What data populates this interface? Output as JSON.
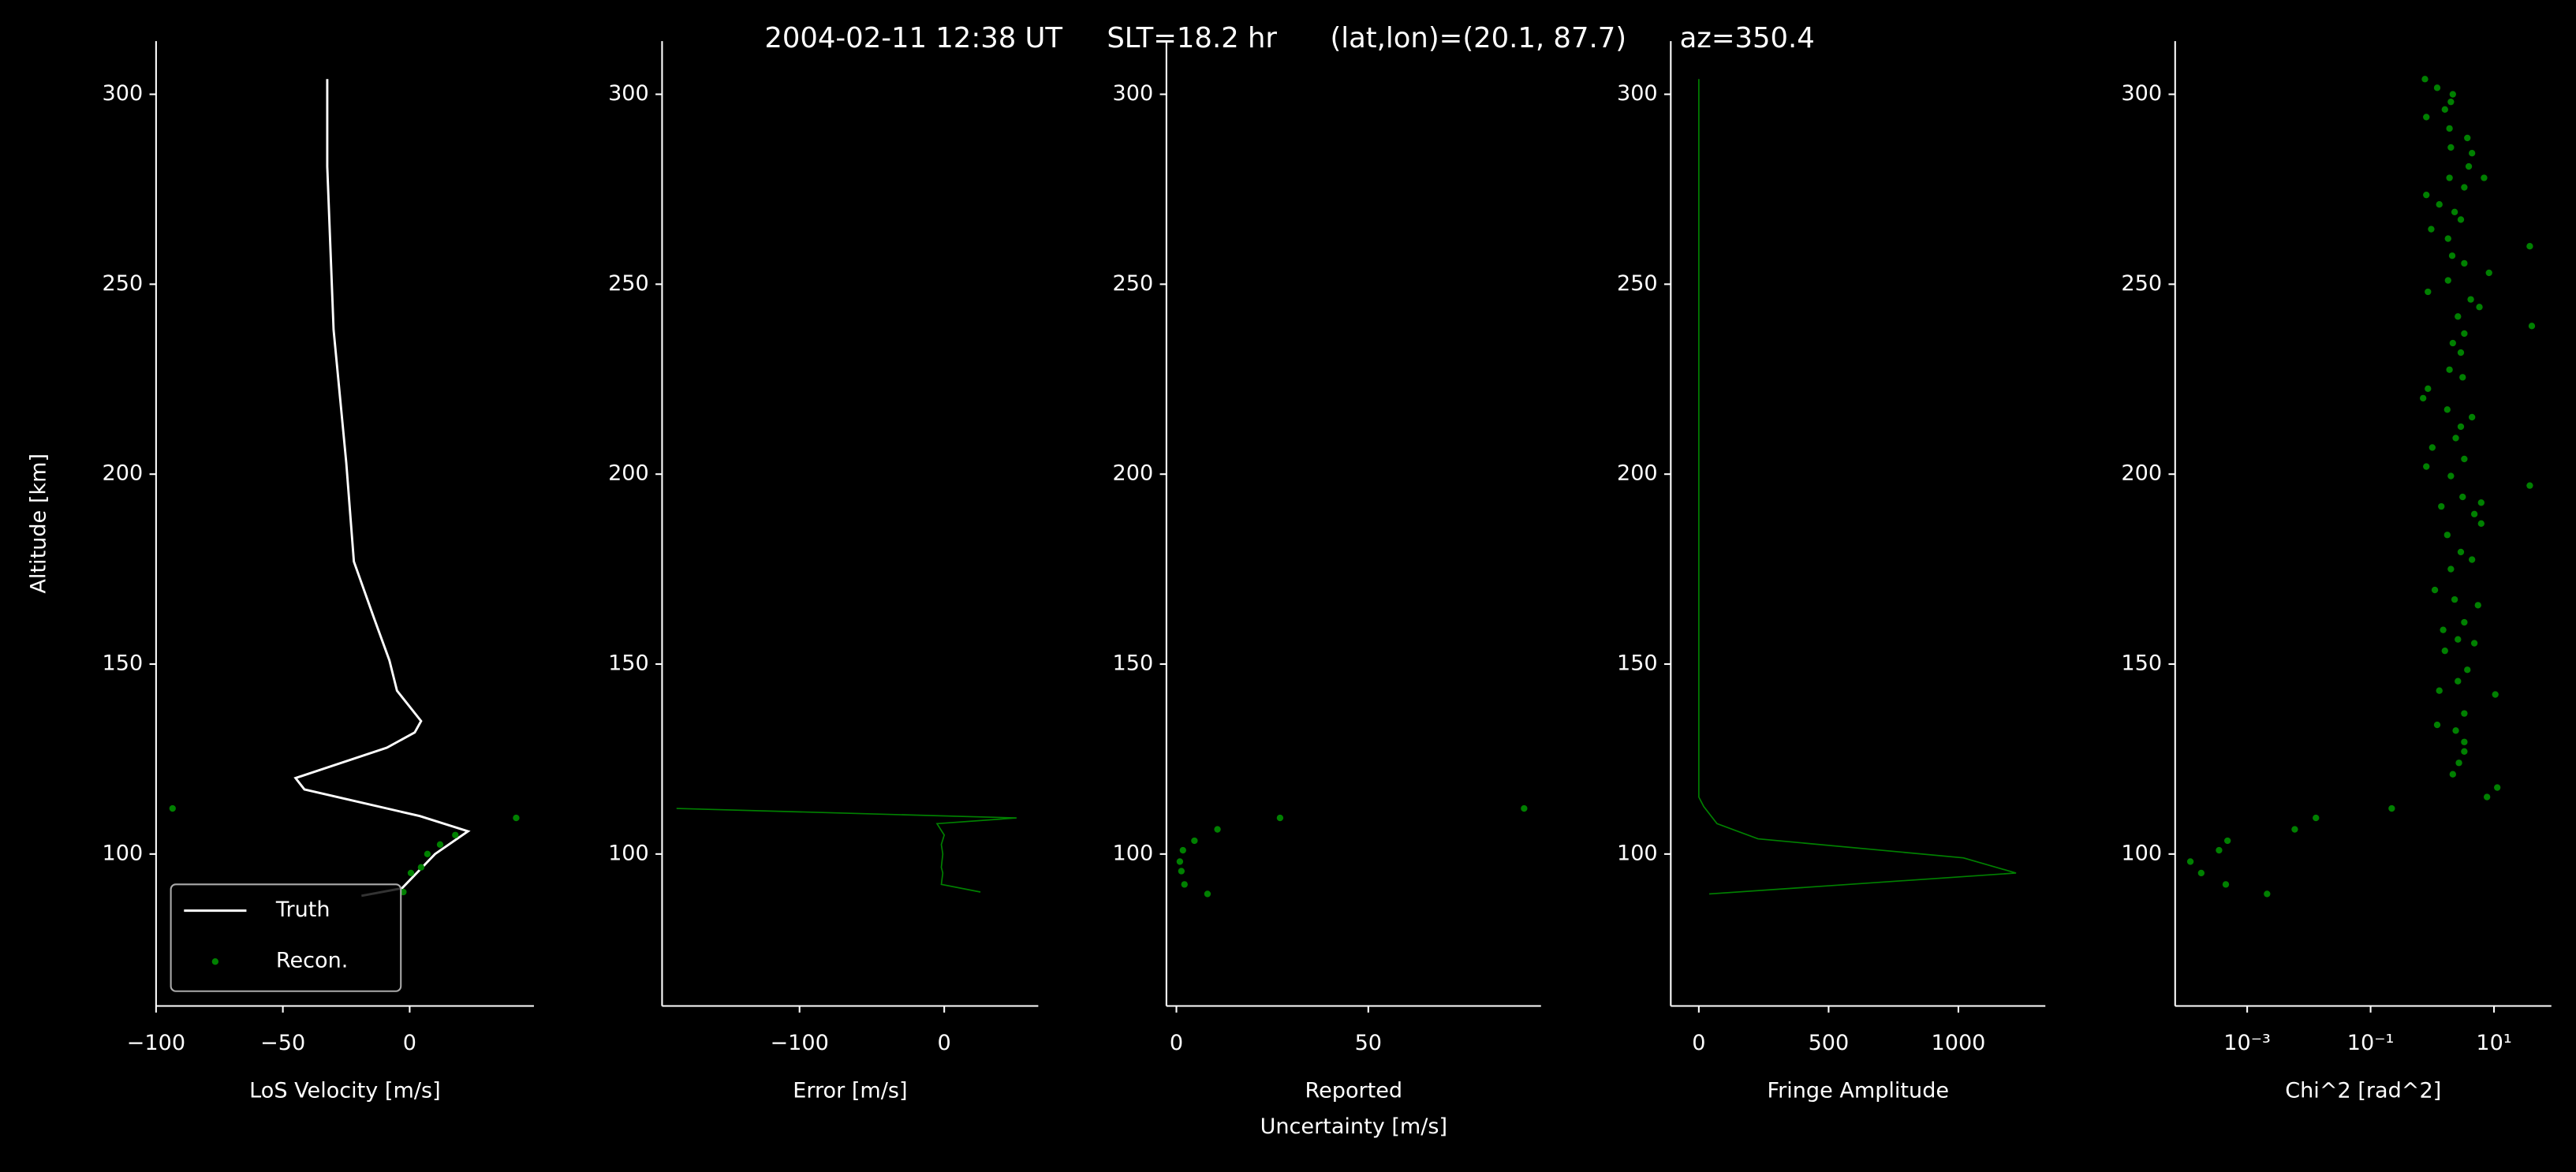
{
  "title": "2004-02-11 12:38 UT     SLT=18.2 hr      (lat,lon)=(20.1, 87.7)      az=350.4",
  "chart_data": [
    {
      "type": "line",
      "xlabel": "LoS Velocity [m/s]",
      "ylabel": "Altitude [km]",
      "xlim": [
        -100,
        49
      ],
      "xticks": [
        {
          "value": -100,
          "label": "−100"
        },
        {
          "value": -50,
          "label": "−50"
        },
        0
      ],
      "ylim": [
        60,
        314
      ],
      "yticks": [
        100,
        150,
        200,
        250,
        300
      ],
      "legend": "lower left",
      "series": [
        {
          "name": "Truth",
          "style": "line",
          "color": "#ffffff",
          "x": [
            -32.5,
            -32.5,
            -30,
            -25,
            -22,
            -14,
            -8,
            -5,
            4.5,
            2,
            -9,
            -45,
            -41.5,
            4,
            23,
            10,
            -3,
            -19
          ],
          "y": [
            304,
            281,
            238,
            203,
            177,
            162,
            151,
            143,
            135,
            132,
            128,
            120,
            117,
            110,
            106,
            100,
            91,
            89
          ]
        },
        {
          "name": "Recon.",
          "style": "dots",
          "color": "#008000",
          "x": [
            -93.5,
            42,
            18,
            12,
            7,
            4.5,
            0.5,
            -2.5
          ],
          "y": [
            112,
            109.5,
            105,
            102.5,
            100,
            96.5,
            95,
            90
          ]
        }
      ]
    },
    {
      "type": "line",
      "xlabel": "Error [m/s]",
      "xlim": [
        -195,
        65
      ],
      "xticks": [
        {
          "value": -100,
          "label": "−100"
        },
        0
      ],
      "ylim": [
        60,
        314
      ],
      "yticks": [
        100,
        150,
        200,
        250,
        300
      ],
      "series": [
        {
          "style": "line",
          "color": "#008000",
          "x": [
            -185,
            50,
            -5,
            0,
            -2,
            -1,
            -2,
            -1,
            -2,
            25
          ],
          "y": [
            112,
            109.5,
            108,
            105,
            102.5,
            100,
            96.5,
            95,
            92,
            90
          ]
        }
      ]
    },
    {
      "type": "scatter",
      "xlabel": [
        "Reported",
        "Uncertainty [m/s]"
      ],
      "xlim": [
        -2.6,
        95
      ],
      "xticks": [
        0,
        50
      ],
      "ylim": [
        60,
        314
      ],
      "yticks": [
        100,
        150,
        200,
        250,
        300
      ],
      "series": [
        {
          "style": "dots",
          "color": "#008000",
          "x": [
            90.6,
            27,
            10.7,
            4.7,
            1.7,
            0.9,
            1.3,
            2.1,
            8.1
          ],
          "y": [
            112,
            109.5,
            106.5,
            103.5,
            101,
            98,
            95.5,
            92,
            89.5
          ]
        }
      ]
    },
    {
      "type": "line",
      "xlabel": "Fringe Amplitude",
      "xlim": [
        -108,
        1335
      ],
      "xticks": [
        0,
        500,
        1000
      ],
      "ylim": [
        60,
        314
      ],
      "yticks": [
        100,
        150,
        200,
        250,
        300
      ],
      "series": [
        {
          "style": "line",
          "color": "#008000",
          "x": [
            0,
            0,
            19,
            70,
            228,
            1019,
            1222,
            40
          ],
          "y": [
            304,
            115,
            112.5,
            108,
            104,
            99,
            95,
            89.5
          ]
        }
      ]
    },
    {
      "type": "scatter",
      "xlabel": "Chi^2 [rad^2]",
      "xscale": "log",
      "xlim": [
        6.8e-05,
        85
      ],
      "xticks": [
        {
          "value": 0.001,
          "label": "10⁻³"
        },
        {
          "value": 0.1,
          "label": "10⁻¹"
        },
        {
          "value": 10,
          "label": "10¹"
        }
      ],
      "ylim": [
        60,
        314
      ],
      "yticks": [
        100,
        150,
        200,
        250,
        300
      ],
      "series": [
        {
          "style": "dots",
          "color": "#008000",
          "x": [
            0.76,
            1.2,
            2.15,
            2.0,
            1.6,
            0.8,
            1.9,
            3.7,
            2.0,
            4.4,
            3.9,
            1.9,
            6.9,
            3.3,
            0.8,
            1.3,
            2.3,
            2.9,
            0.96,
            1.8,
            38,
            2.1,
            3.3,
            8.3,
            1.8,
            0.85,
            4.2,
            5.8,
            2.6,
            41,
            3.3,
            2.15,
            2.9,
            1.9,
            3.1,
            0.85,
            0.71,
            1.75,
            4.4,
            2.9,
            2.4,
            1.0,
            3.3,
            0.8,
            2.0,
            38,
            3.1,
            1.4,
            6.2,
            4.8,
            6.2,
            1.75,
            2.9,
            4.4,
            2.0,
            1.1,
            2.3,
            5.5,
            3.3,
            1.5,
            2.6,
            1.6,
            4.8,
            3.7,
            2.6,
            1.3,
            10.5,
            3.3,
            1.2,
            2.4,
            3.3,
            3.3,
            2.7,
            2.15,
            11.3,
            7.7,
            0.22,
            0.013,
            0.0059,
            0.00048,
            0.00035,
            0.00012,
            0.00018,
            0.00045,
            0.0021
          ],
          "y": [
            304,
            301.7,
            300,
            298,
            296,
            294,
            291,
            288.5,
            286,
            284.5,
            281,
            278,
            278,
            275.5,
            273.5,
            271,
            269,
            267,
            264.5,
            262,
            260,
            257.5,
            255.5,
            253,
            251,
            248,
            246,
            244,
            241.5,
            239,
            237,
            234.5,
            232,
            227.5,
            225.5,
            222.5,
            220,
            217,
            215,
            212.5,
            209.5,
            207,
            204,
            202,
            199.5,
            197,
            194,
            191.5,
            192.5,
            189.5,
            187,
            184,
            179.5,
            177.5,
            175,
            169.5,
            167,
            165.5,
            161,
            159,
            156.5,
            153.5,
            155.5,
            148.5,
            145.5,
            143,
            142,
            137,
            134,
            132.5,
            129.5,
            127,
            124,
            121,
            117.5,
            115,
            112,
            109.5,
            106.5,
            103.5,
            101,
            98,
            95,
            92,
            89.5
          ]
        }
      ]
    }
  ]
}
